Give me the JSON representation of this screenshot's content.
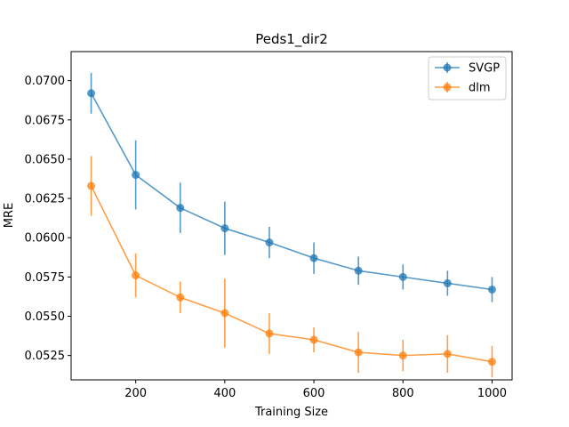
{
  "chart_data": {
    "type": "line",
    "title": "Peds1_dir2",
    "xlabel": "Training Size",
    "ylabel": "MRE",
    "xlim": [
      55,
      1045
    ],
    "ylim": [
      0.05095,
      0.07185
    ],
    "xticks": [
      200,
      400,
      600,
      800,
      1000
    ],
    "xtick_labels": [
      "200",
      "400",
      "600",
      "800",
      "1000"
    ],
    "yticks": [
      0.0525,
      0.055,
      0.0575,
      0.06,
      0.0625,
      0.065,
      0.0675,
      0.07
    ],
    "ytick_labels": [
      "0.0525",
      "0.0550",
      "0.0575",
      "0.0600",
      "0.0625",
      "0.0650",
      "0.0675",
      "0.0700"
    ],
    "grid": false,
    "legend_position": "top-right",
    "x": [
      100,
      200,
      300,
      400,
      500,
      600,
      700,
      800,
      900,
      1000
    ],
    "series": [
      {
        "name": "SVGP",
        "color": "#1f77b4",
        "values": [
          0.0692,
          0.064,
          0.0619,
          0.0606,
          0.0597,
          0.0587,
          0.0579,
          0.0575,
          0.0571,
          0.0567
        ],
        "errors": [
          0.0013,
          0.0022,
          0.0016,
          0.0017,
          0.001,
          0.001,
          0.0009,
          0.0008,
          0.0008,
          0.0008
        ]
      },
      {
        "name": "dlm",
        "color": "#ff7f0e",
        "values": [
          0.0633,
          0.0576,
          0.0562,
          0.0552,
          0.0539,
          0.0535,
          0.0527,
          0.0525,
          0.0526,
          0.0521
        ],
        "errors": [
          0.0019,
          0.0014,
          0.001,
          0.0022,
          0.0013,
          0.0008,
          0.0013,
          0.001,
          0.0012,
          0.001
        ]
      }
    ]
  }
}
